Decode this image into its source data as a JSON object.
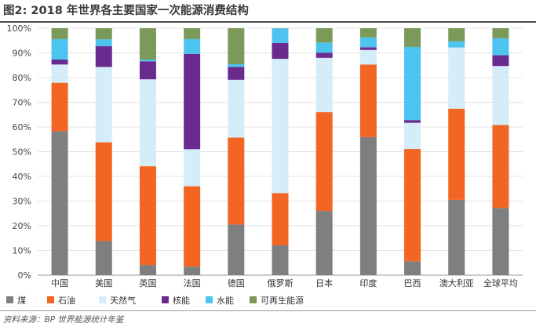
{
  "title": "图2: 2018 年世界各主要国家一次能源消费结构",
  "source": "资料来源：BP 世界能源统计年鉴",
  "chart_data": {
    "type": "bar",
    "stacked": true,
    "title": "图2: 2018 年世界各主要国家一次能源消费结构",
    "xlabel": "",
    "ylabel": "",
    "ylim": [
      0,
      100
    ],
    "y_ticks": [
      "0%",
      "10%",
      "20%",
      "30%",
      "40%",
      "50%",
      "60%",
      "70%",
      "80%",
      "90%",
      "100%"
    ],
    "grid": "horizontal",
    "legend_position": "bottom",
    "categories": [
      "中国",
      "美国",
      "英国",
      "法国",
      "德国",
      "俄罗斯",
      "日本",
      "印度",
      "巴西",
      "澳大利亚",
      "全球平均"
    ],
    "series": [
      {
        "name": "煤",
        "color": "#7f7f7f",
        "values": [
          58.3,
          13.8,
          4.1,
          3.4,
          20.5,
          12.1,
          26.0,
          55.9,
          5.6,
          30.5,
          27.2
        ]
      },
      {
        "name": "石油",
        "color": "#f26522",
        "values": [
          19.6,
          40.0,
          40.0,
          32.6,
          35.2,
          21.1,
          40.0,
          29.4,
          45.5,
          36.9,
          33.6
        ]
      },
      {
        "name": "天然气",
        "color": "#d5ecf9",
        "values": [
          7.4,
          30.5,
          35.2,
          15.0,
          23.4,
          54.4,
          22.0,
          5.9,
          10.6,
          24.8,
          23.9
        ]
      },
      {
        "name": "核能",
        "color": "#6a2b8f",
        "values": [
          2.0,
          8.4,
          7.3,
          38.6,
          5.2,
          6.4,
          2.1,
          1.1,
          1.1,
          0.0,
          4.4
        ]
      },
      {
        "name": "水能",
        "color": "#4dc3f0",
        "values": [
          8.3,
          2.8,
          0.7,
          6.0,
          1.1,
          5.9,
          4.1,
          4.0,
          29.6,
          2.5,
          6.8
        ]
      },
      {
        "name": "可再生能源",
        "color": "#7b9a5a",
        "values": [
          4.4,
          4.5,
          12.7,
          4.4,
          14.6,
          0.1,
          5.8,
          3.7,
          7.6,
          5.3,
          4.1
        ]
      }
    ]
  }
}
